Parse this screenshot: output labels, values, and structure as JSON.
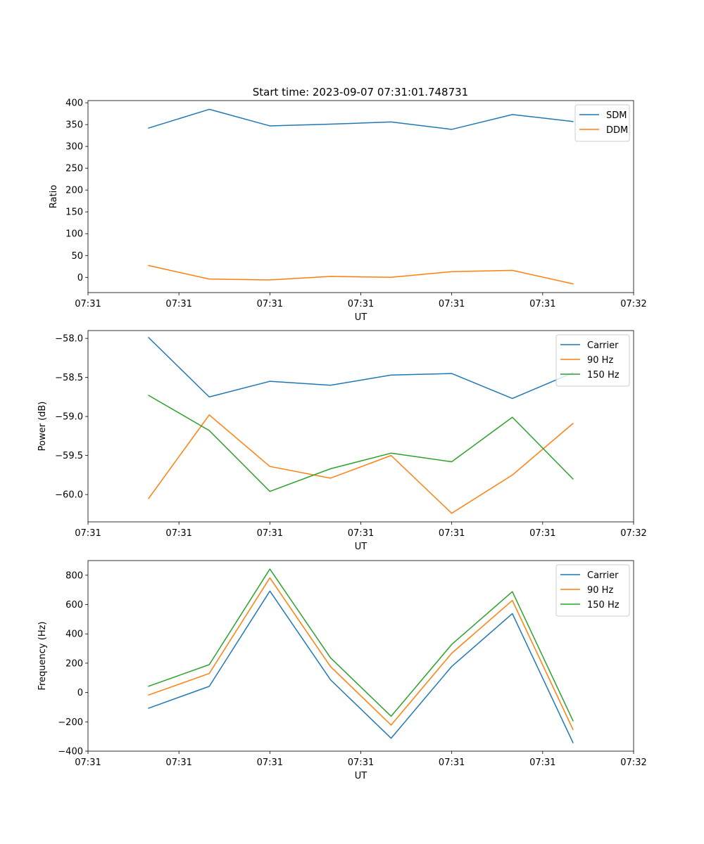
{
  "figure_title": "Start time: 2023-09-07 07:31:01.748731",
  "colors": {
    "blue": "#1f77b4",
    "orange": "#ff7f0e",
    "green": "#2ca02c"
  },
  "chart_data": [
    {
      "type": "line",
      "title": "Start time: 2023-09-07 07:31:01.748731",
      "xlabel": "UT",
      "ylabel": "Ratio",
      "x": [
        0.5,
        1,
        1.5,
        2,
        2.5,
        3,
        3.5,
        4
      ],
      "xlim": [
        0,
        4.5
      ],
      "x_ticks": [
        0,
        0.75,
        1.5,
        2.25,
        3,
        3.75,
        4.5
      ],
      "x_tick_labels": [
        "07:31",
        "07:31",
        "07:31",
        "07:31",
        "07:31",
        "07:31",
        "07:32"
      ],
      "ylim": [
        -35,
        405
      ],
      "y_ticks": [
        0,
        50,
        100,
        150,
        200,
        250,
        300,
        350,
        400
      ],
      "y_tick_labels": [
        "0",
        "50",
        "100",
        "150",
        "200",
        "250",
        "300",
        "350",
        "400"
      ],
      "legend_position": "top-right",
      "series": [
        {
          "name": "SDM",
          "color": "#1f77b4",
          "values": [
            342,
            385,
            347,
            351,
            356,
            339,
            373,
            357
          ]
        },
        {
          "name": "DDM",
          "color": "#ff7f0e",
          "values": [
            27,
            -4,
            -6,
            2,
            0,
            13,
            16,
            -15
          ]
        }
      ]
    },
    {
      "type": "line",
      "title": "",
      "xlabel": "UT",
      "ylabel": "Power (dB)",
      "x": [
        0.5,
        1,
        1.5,
        2,
        2.5,
        3,
        3.5,
        4
      ],
      "xlim": [
        0,
        4.5
      ],
      "x_ticks": [
        0,
        0.75,
        1.5,
        2.25,
        3,
        3.75,
        4.5
      ],
      "x_tick_labels": [
        "07:31",
        "07:31",
        "07:31",
        "07:31",
        "07:31",
        "07:31",
        "07:32"
      ],
      "ylim": [
        -60.35,
        -57.9
      ],
      "y_ticks": [
        -60.0,
        -59.5,
        -59.0,
        -58.5,
        -58.0
      ],
      "y_tick_labels": [
        "−60.0",
        "−59.5",
        "−59.0",
        "−58.5",
        "−58.0"
      ],
      "legend_position": "top-right",
      "series": [
        {
          "name": "Carrier",
          "color": "#1f77b4",
          "values": [
            -57.99,
            -58.75,
            -58.55,
            -58.6,
            -58.47,
            -58.45,
            -58.77,
            -58.44
          ]
        },
        {
          "name": "90 Hz",
          "color": "#ff7f0e",
          "values": [
            -60.05,
            -58.98,
            -59.64,
            -59.79,
            -59.5,
            -60.24,
            -59.75,
            -59.09
          ]
        },
        {
          "name": "150 Hz",
          "color": "#2ca02c",
          "values": [
            -58.73,
            -59.18,
            -59.96,
            -59.67,
            -59.47,
            -59.58,
            -59.01,
            -59.8
          ]
        }
      ]
    },
    {
      "type": "line",
      "title": "",
      "xlabel": "UT",
      "ylabel": "Frequency (Hz)",
      "x": [
        0.5,
        1,
        1.5,
        2,
        2.5,
        3,
        3.5,
        4
      ],
      "xlim": [
        0,
        4.5
      ],
      "x_ticks": [
        0,
        0.75,
        1.5,
        2.25,
        3,
        3.75,
        4.5
      ],
      "x_tick_labels": [
        "07:31",
        "07:31",
        "07:31",
        "07:31",
        "07:31",
        "07:31",
        "07:32"
      ],
      "ylim": [
        -400,
        900
      ],
      "y_ticks": [
        -400,
        -200,
        0,
        200,
        400,
        600,
        800
      ],
      "y_tick_labels": [
        "−400",
        "−200",
        "0",
        "200",
        "400",
        "600",
        "800"
      ],
      "legend_position": "top-right",
      "series": [
        {
          "name": "Carrier",
          "color": "#1f77b4",
          "values": [
            -107,
            42,
            692,
            87,
            -312,
            178,
            538,
            -342
          ]
        },
        {
          "name": "90 Hz",
          "color": "#ff7f0e",
          "values": [
            -17,
            130,
            782,
            177,
            -222,
            268,
            628,
            -252
          ]
        },
        {
          "name": "150 Hz",
          "color": "#2ca02c",
          "values": [
            43,
            190,
            842,
            237,
            -162,
            328,
            688,
            -192
          ]
        }
      ]
    }
  ]
}
